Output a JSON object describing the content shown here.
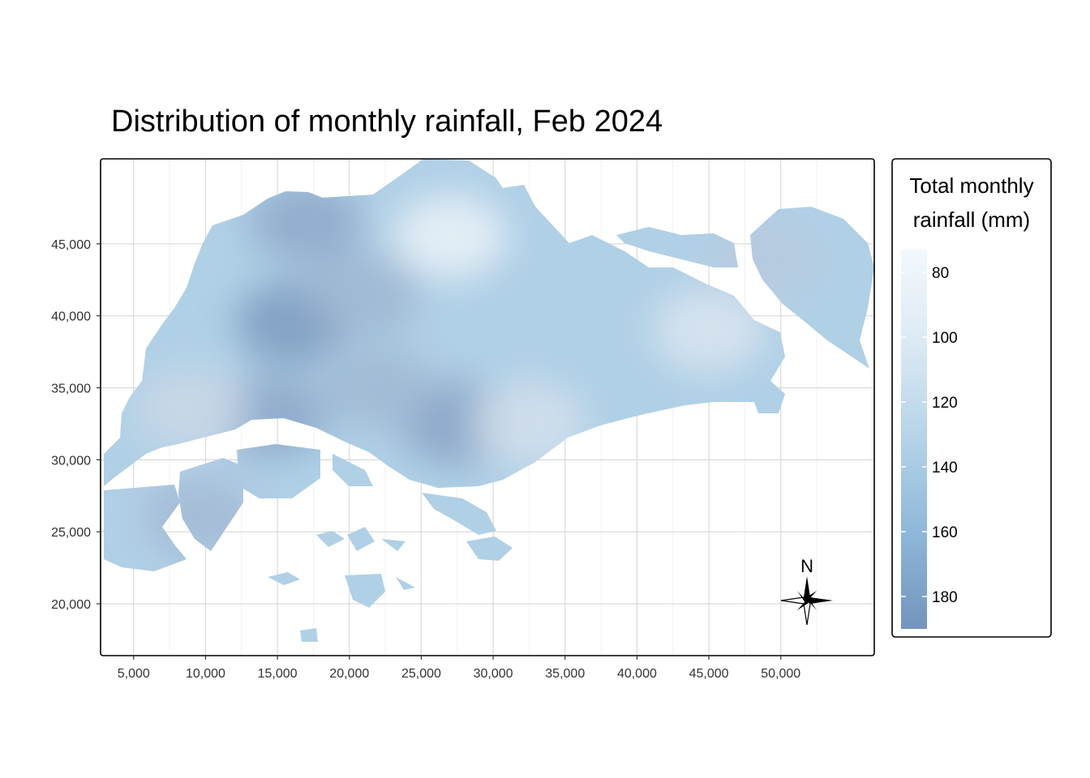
{
  "title": "Distribution of monthly rainfall, Feb 2024",
  "chart_data": {
    "type": "heatmap",
    "title": "Distribution of monthly rainfall, Feb 2024",
    "xlabel": "",
    "ylabel": "",
    "x_ticks": [
      5000,
      10000,
      15000,
      20000,
      25000,
      30000,
      35000,
      40000,
      45000,
      50000
    ],
    "x_tick_labels": [
      "5,000",
      "10,000",
      "15,000",
      "20,000",
      "25,000",
      "30,000",
      "35,000",
      "40,000",
      "45,000",
      "50,000"
    ],
    "y_ticks": [
      20000,
      25000,
      30000,
      35000,
      40000,
      45000
    ],
    "y_tick_labels": [
      "20,000",
      "25,000",
      "30,000",
      "35,000",
      "40,000",
      "45,000"
    ],
    "xlim": [
      2700,
      56500
    ],
    "ylim": [
      16400,
      50900
    ],
    "grid": true,
    "legend": {
      "title_lines": [
        "Total monthly",
        "rainfall (mm)"
      ],
      "placement": "right",
      "ticks": [
        80,
        100,
        120,
        140,
        160,
        180
      ],
      "tick_labels": [
        "80",
        "100",
        "120",
        "140",
        "160",
        "180"
      ],
      "range": [
        73,
        190
      ],
      "color_low": "#f3f8fc",
      "color_high": "#7394bc"
    },
    "rainfall_hotspots": [
      {
        "x": 16000,
        "y": 39500,
        "value": 182
      },
      {
        "x": 17000,
        "y": 46500,
        "value": 165
      },
      {
        "x": 14500,
        "y": 33000,
        "value": 168
      },
      {
        "x": 27500,
        "y": 32500,
        "value": 172
      },
      {
        "x": 22000,
        "y": 35000,
        "value": 148
      },
      {
        "x": 21000,
        "y": 41500,
        "value": 150
      },
      {
        "x": 9500,
        "y": 26000,
        "value": 145
      },
      {
        "x": 27000,
        "y": 45500,
        "value": 80
      },
      {
        "x": 45000,
        "y": 39000,
        "value": 95
      },
      {
        "x": 32500,
        "y": 32500,
        "value": 100
      },
      {
        "x": 9000,
        "y": 33500,
        "value": 110
      },
      {
        "x": 49000,
        "y": 44000,
        "value": 128
      }
    ]
  },
  "north_arrow": {
    "label": "N"
  }
}
